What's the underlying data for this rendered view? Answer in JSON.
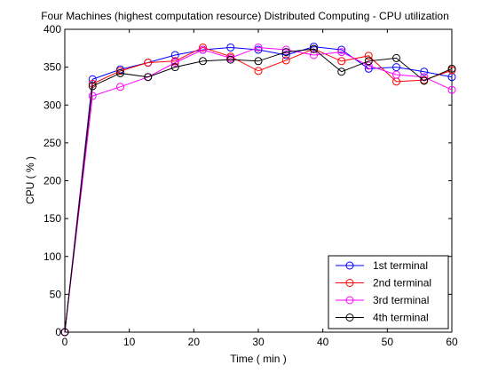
{
  "chart_data": {
    "type": "line",
    "title": "Four Machines (highest computation resource) Distributed Computing - CPU utilization",
    "xlabel": "Time ( min )",
    "ylabel": "CPU ( % )",
    "xlim": [
      0,
      60
    ],
    "ylim": [
      0,
      400
    ],
    "xticks": [
      0,
      10,
      20,
      30,
      40,
      50,
      60
    ],
    "yticks": [
      0,
      50,
      100,
      150,
      200,
      250,
      300,
      350,
      400
    ],
    "grid": false,
    "legend_position": "bottom-right",
    "marker": "circle",
    "x": [
      0,
      4.3,
      8.6,
      12.9,
      17.1,
      21.4,
      25.7,
      30,
      34.3,
      38.6,
      42.9,
      47.1,
      51.4,
      55.7,
      60
    ],
    "series": [
      {
        "name": "1st terminal",
        "color": "#0000ff",
        "values": [
          0,
          334,
          347,
          356,
          366,
          373,
          376,
          373,
          366,
          377,
          373,
          348,
          350,
          344,
          337
        ]
      },
      {
        "name": "2nd terminal",
        "color": "#ff0000",
        "values": [
          0,
          328,
          345,
          356,
          358,
          376,
          364,
          345,
          359,
          374,
          358,
          365,
          331,
          333,
          346
        ]
      },
      {
        "name": "3rd terminal",
        "color": "#ff00ff",
        "values": [
          0,
          312,
          324,
          337,
          356,
          373,
          362,
          376,
          373,
          366,
          370,
          352,
          340,
          337,
          320
        ]
      },
      {
        "name": "4th terminal",
        "color": "#000000",
        "values": [
          0,
          325,
          342,
          337,
          350,
          358,
          360,
          358,
          370,
          374,
          344,
          358,
          362,
          332,
          348
        ]
      }
    ]
  }
}
